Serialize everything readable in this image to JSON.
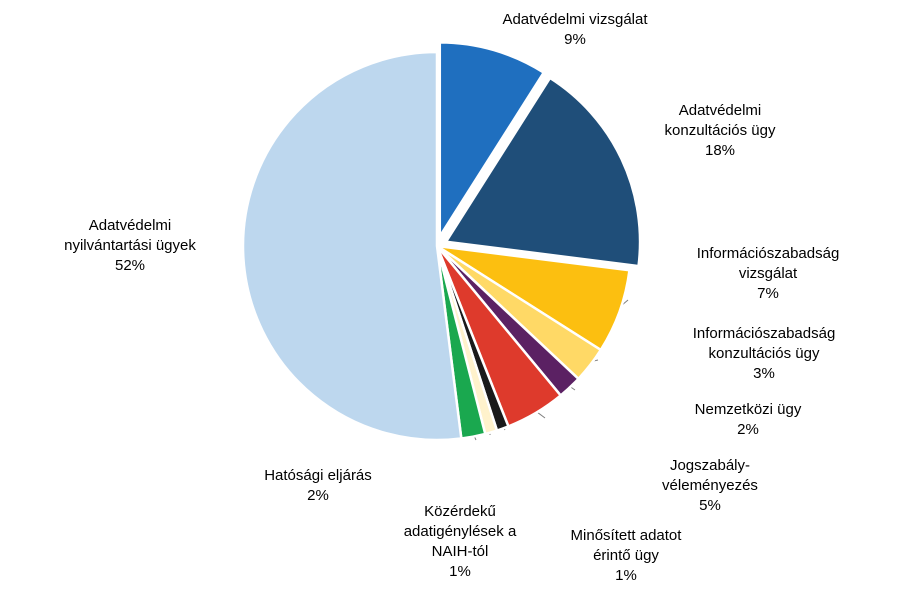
{
  "chart_data": {
    "type": "pie",
    "title": "",
    "legend": "none",
    "slices": [
      {
        "label": [
          "Adatvédelmi vizsgálat"
        ],
        "pct_label": "9%",
        "value": 9,
        "color": "#1f6fbf",
        "exploded": true
      },
      {
        "label": [
          "Adatvédelmi",
          "konzultációs ügy"
        ],
        "pct_label": "18%",
        "value": 18,
        "color": "#1f4e79",
        "exploded": true
      },
      {
        "label": [
          "Információszabadság",
          "vizsgálat"
        ],
        "pct_label": "7%",
        "value": 7,
        "color": "#fcbf10",
        "exploded": false
      },
      {
        "label": [
          "Információszabadság",
          "konzultációs ügy"
        ],
        "pct_label": "3%",
        "value": 3,
        "color": "#ffd966",
        "exploded": false
      },
      {
        "label": [
          "Nemzetközi ügy"
        ],
        "pct_label": "2%",
        "value": 2,
        "color": "#5b2163",
        "exploded": false
      },
      {
        "label": [
          "Jogszabály-",
          "véleményezés"
        ],
        "pct_label": "5%",
        "value": 5,
        "color": "#de3a2c",
        "exploded": false
      },
      {
        "label": [
          "Minősített adatot",
          "érintő ügy"
        ],
        "pct_label": "1%",
        "value": 1,
        "color": "#1a1a1a",
        "exploded": false
      },
      {
        "label": [
          "Közérdekű",
          "adatigénylések a",
          "NAIH-tól"
        ],
        "pct_label": "1%",
        "value": 1,
        "color": "#fff2cc",
        "exploded": false
      },
      {
        "label": [
          "Hatósági eljárás"
        ],
        "pct_label": "2%",
        "value": 2,
        "color": "#1aa84f",
        "exploded": false
      },
      {
        "label": [
          "Adatvédelmi",
          "nyilvántartási ügyek"
        ],
        "pct_label": "52%",
        "value": 52,
        "color": "#bdd7ee",
        "exploded": false
      }
    ]
  }
}
